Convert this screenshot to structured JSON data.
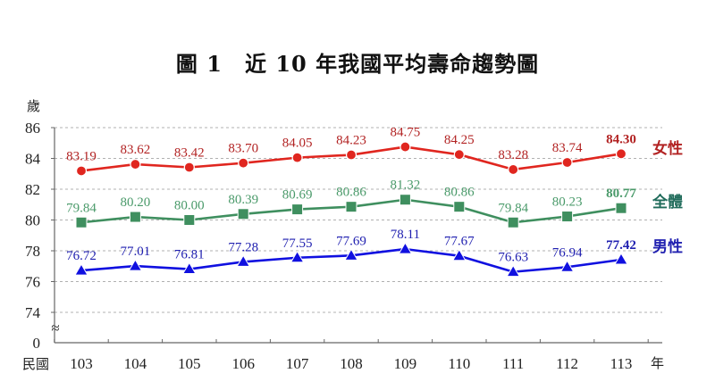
{
  "title": "圖 1　近 10 年我國平均壽命趨勢圖",
  "chart_data": {
    "type": "line",
    "title": "圖 1　近 10 年我國平均壽命趨勢圖",
    "xlabel_prefix": "民國",
    "xlabel_suffix": "年",
    "ylabel": "歲",
    "categories": [
      "103",
      "104",
      "105",
      "106",
      "107",
      "108",
      "109",
      "110",
      "111",
      "112",
      "113"
    ],
    "y_ticks": [
      "86",
      "84",
      "82",
      "80",
      "78",
      "76",
      "74",
      "0"
    ],
    "ylim": [
      74,
      86
    ],
    "axis_break": "≈",
    "grid": true,
    "legend_position": "right",
    "series": [
      {
        "name": "女性",
        "color": "#e0261f",
        "label_color": "#b22222",
        "marker": "circle",
        "values": [
          83.19,
          83.62,
          83.42,
          83.7,
          84.05,
          84.23,
          84.75,
          84.25,
          83.28,
          83.74,
          84.3
        ],
        "labels": [
          "83.19",
          "83.62",
          "83.42",
          "83.70",
          "84.05",
          "84.23",
          "84.75",
          "84.25",
          "83.28",
          "83.74",
          "84.30"
        ]
      },
      {
        "name": "全體",
        "color": "#3f8f5f",
        "label_color": "#4a9a6a",
        "legend_color": "#1f6b5a",
        "marker": "square",
        "values": [
          79.84,
          80.2,
          80.0,
          80.39,
          80.69,
          80.86,
          81.32,
          80.86,
          79.84,
          80.23,
          80.77
        ],
        "labels": [
          "79.84",
          "80.20",
          "80.00",
          "80.39",
          "80.69",
          "80.86",
          "81.32",
          "80.86",
          "79.84",
          "80.23",
          "80.77"
        ]
      },
      {
        "name": "男性",
        "color": "#1010e0",
        "label_color": "#2020b0",
        "marker": "triangle",
        "values": [
          76.72,
          77.01,
          76.81,
          77.28,
          77.55,
          77.69,
          78.11,
          77.67,
          76.63,
          76.94,
          77.42
        ],
        "labels": [
          "76.72",
          "77.01",
          "76.81",
          "77.28",
          "77.55",
          "77.69",
          "78.11",
          "77.67",
          "76.63",
          "76.94",
          "77.42"
        ]
      }
    ]
  }
}
